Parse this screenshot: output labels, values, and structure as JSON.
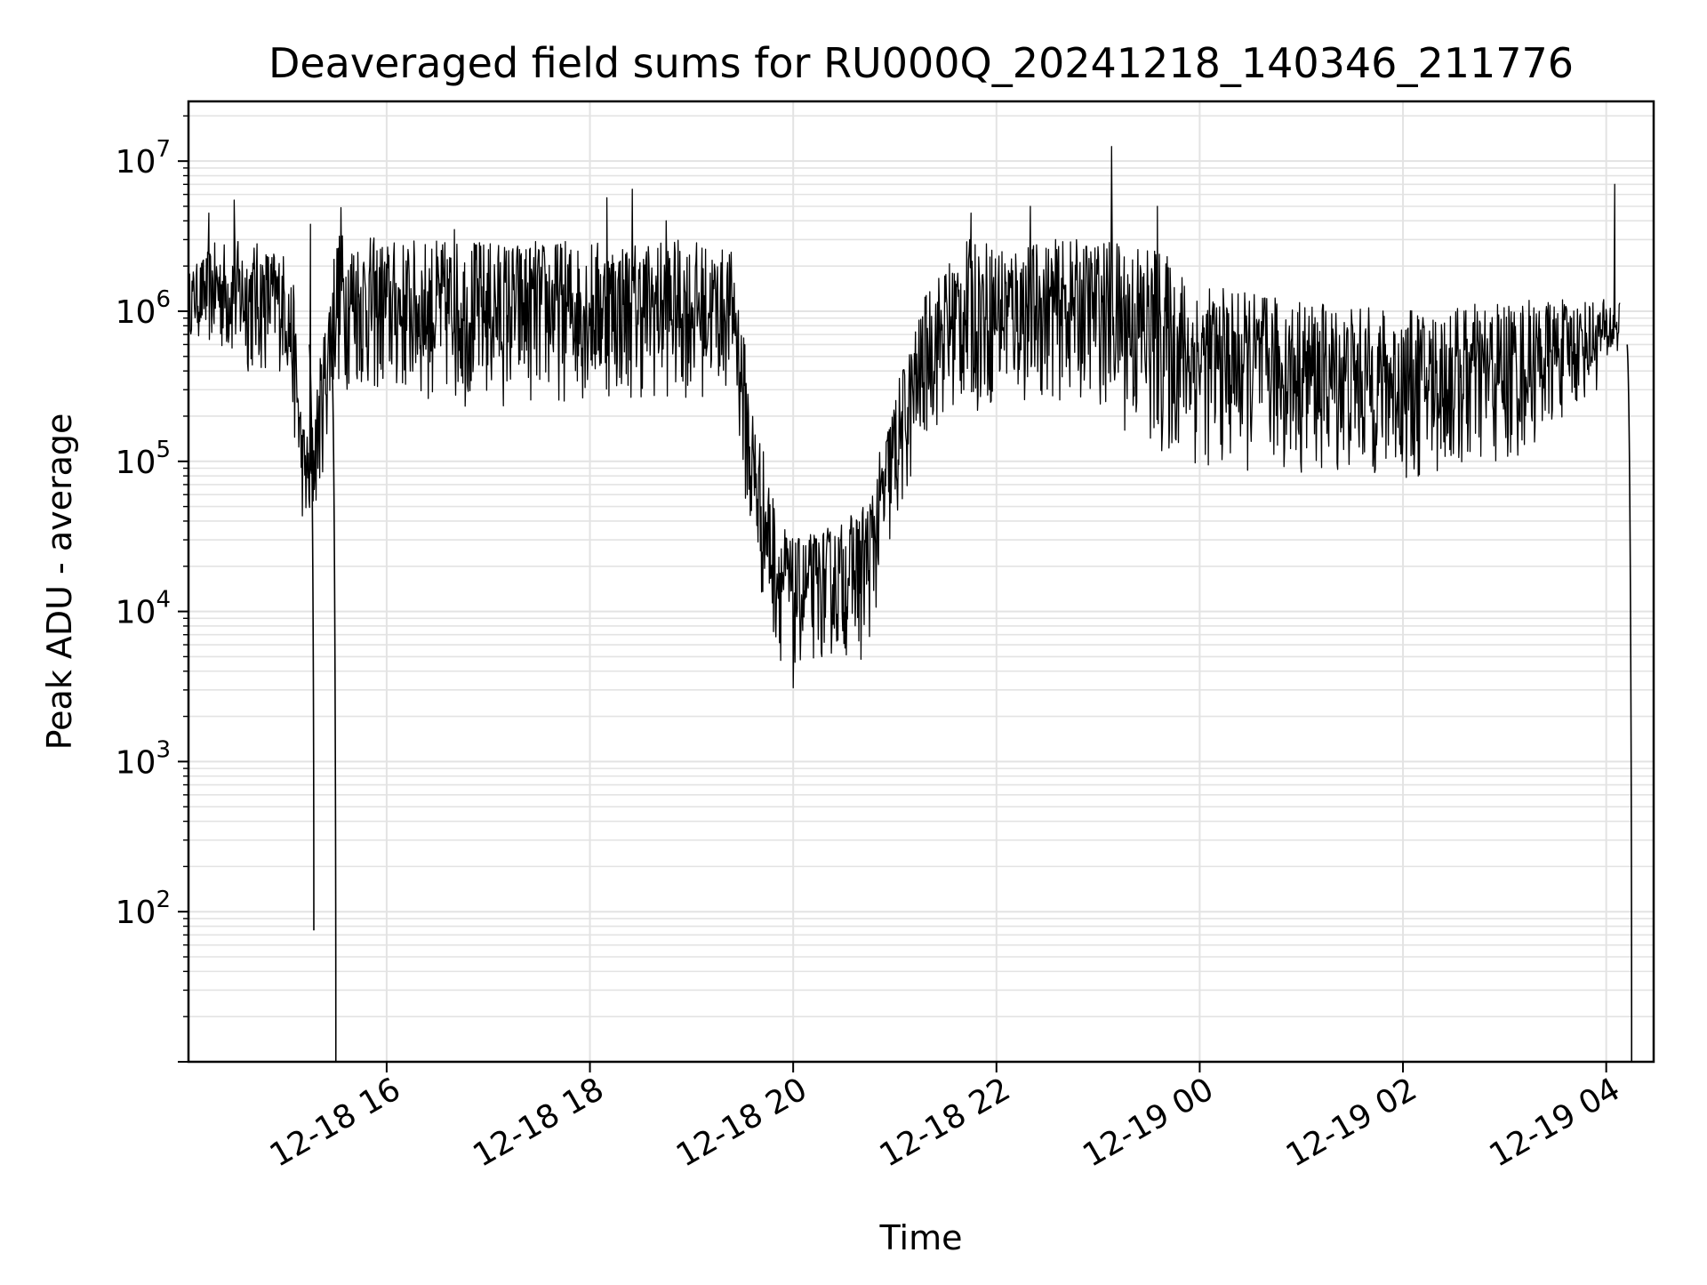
{
  "chart_data": {
    "type": "line",
    "title": "Deaveraged field sums for RU000Q_20241218_140346_211776",
    "xlabel": "Time",
    "ylabel": "Peak ADU - average",
    "xscale": "time",
    "yscale": "log",
    "xlim": [
      "2024-12-18 14:03",
      "2024-12-19 04:28"
    ],
    "ylim": [
      10,
      25000000
    ],
    "grid": true,
    "line_color": "#000000",
    "grid_color": "#e3e3e3",
    "x_ticks": [
      {
        "value": "2024-12-18 16:00",
        "label": "12-18 16"
      },
      {
        "value": "2024-12-18 18:00",
        "label": "12-18 18"
      },
      {
        "value": "2024-12-18 20:00",
        "label": "12-18 20"
      },
      {
        "value": "2024-12-18 22:00",
        "label": "12-18 22"
      },
      {
        "value": "2024-12-19 00:00",
        "label": "12-19 00"
      },
      {
        "value": "2024-12-19 02:00",
        "label": "12-19 02"
      },
      {
        "value": "2024-12-19 04:00",
        "label": "12-19 04"
      }
    ],
    "y_ticks": [
      {
        "value": 100,
        "base": "10",
        "exp": "2"
      },
      {
        "value": 1000,
        "base": "10",
        "exp": "3"
      },
      {
        "value": 10000,
        "base": "10",
        "exp": "4"
      },
      {
        "value": 100000,
        "base": "10",
        "exp": "5"
      },
      {
        "value": 1000000,
        "base": "10",
        "exp": "6"
      },
      {
        "value": 10000000,
        "base": "10",
        "exp": "7"
      }
    ],
    "series": [
      {
        "envelope": [
          {
            "t": "2024-12-18 14:03",
            "lo": 700000,
            "hi": 1800000
          },
          {
            "t": "2024-12-18 14:20",
            "lo": 500000,
            "hi": 3000000
          },
          {
            "t": "2024-12-18 14:40",
            "lo": 350000,
            "hi": 3000000
          },
          {
            "t": "2024-12-18 15:00",
            "lo": 400000,
            "hi": 2500000
          },
          {
            "t": "2024-12-18 15:05",
            "lo": 150000,
            "hi": 1500000
          },
          {
            "t": "2024-12-18 15:10",
            "lo": 40000,
            "hi": 200000
          },
          {
            "t": "2024-12-18 15:15",
            "lo": 25000,
            "hi": 150000
          },
          {
            "t": "2024-12-18 15:30",
            "lo": 300000,
            "hi": 3500000
          },
          {
            "t": "2024-12-18 16:00",
            "lo": 250000,
            "hi": 3000000
          },
          {
            "t": "2024-12-18 17:00",
            "lo": 220000,
            "hi": 3000000
          },
          {
            "t": "2024-12-18 18:00",
            "lo": 250000,
            "hi": 3000000
          },
          {
            "t": "2024-12-18 19:00",
            "lo": 250000,
            "hi": 3000000
          },
          {
            "t": "2024-12-18 19:25",
            "lo": 300000,
            "hi": 2500000
          },
          {
            "t": "2024-12-18 19:35",
            "lo": 20000,
            "hi": 300000
          },
          {
            "t": "2024-12-18 19:50",
            "lo": 5000,
            "hi": 50000
          },
          {
            "t": "2024-12-18 20:00",
            "lo": 4000,
            "hi": 30000
          },
          {
            "t": "2024-12-18 20:30",
            "lo": 5000,
            "hi": 40000
          },
          {
            "t": "2024-12-18 20:45",
            "lo": 6000,
            "hi": 60000
          },
          {
            "t": "2024-12-18 21:00",
            "lo": 30000,
            "hi": 300000
          },
          {
            "t": "2024-12-18 21:20",
            "lo": 150000,
            "hi": 1500000
          },
          {
            "t": "2024-12-18 21:40",
            "lo": 200000,
            "hi": 3000000
          },
          {
            "t": "2024-12-18 22:30",
            "lo": 250000,
            "hi": 3000000
          },
          {
            "t": "2024-12-18 23:00",
            "lo": 250000,
            "hi": 3000000
          },
          {
            "t": "2024-12-18 23:30",
            "lo": 100000,
            "hi": 3000000
          },
          {
            "t": "2024-12-19 00:00",
            "lo": 90000,
            "hi": 1500000
          },
          {
            "t": "2024-12-19 01:00",
            "lo": 80000,
            "hi": 1200000
          },
          {
            "t": "2024-12-19 02:00",
            "lo": 70000,
            "hi": 1000000
          },
          {
            "t": "2024-12-19 03:00",
            "lo": 80000,
            "hi": 1200000
          },
          {
            "t": "2024-12-19 03:55",
            "lo": 300000,
            "hi": 1200000
          },
          {
            "t": "2024-12-19 04:08",
            "lo": 500000,
            "hi": 1200000
          }
        ],
        "spikes": [
          {
            "t": "2024-12-18 14:15",
            "v": 4500000
          },
          {
            "t": "2024-12-18 14:30",
            "v": 5500000
          },
          {
            "t": "2024-12-18 15:15",
            "v": 3800000
          },
          {
            "t": "2024-12-18 15:33",
            "v": 4900000
          },
          {
            "t": "2024-12-18 16:40",
            "v": 3500000
          },
          {
            "t": "2024-12-18 18:10",
            "v": 5700000
          },
          {
            "t": "2024-12-18 18:25",
            "v": 6500000
          },
          {
            "t": "2024-12-18 18:45",
            "v": 4000000
          },
          {
            "t": "2024-12-18 21:45",
            "v": 4500000
          },
          {
            "t": "2024-12-18 22:20",
            "v": 5000000
          },
          {
            "t": "2024-12-18 23:08",
            "v": 12500000
          },
          {
            "t": "2024-12-18 23:35",
            "v": 5000000
          },
          {
            "t": "2024-12-19 04:05",
            "v": 7000000
          },
          {
            "t": "2024-12-18 20:00",
            "v": 3100
          },
          {
            "t": "2024-12-18 20:40",
            "v": 4800
          }
        ],
        "drops": [
          {
            "t": "2024-12-18 15:17",
            "min": 75
          },
          {
            "t": "2024-12-18 15:30",
            "min": 10
          },
          {
            "t": "2024-12-19 04:15",
            "min": 10
          }
        ]
      }
    ]
  }
}
